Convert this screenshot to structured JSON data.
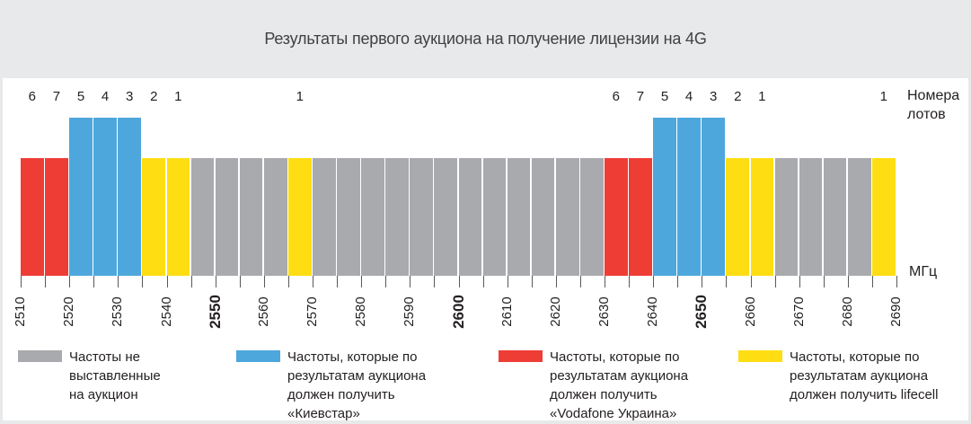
{
  "chart_data": {
    "type": "bar",
    "title": "Результаты первого аукциона на получение лицензии на 4G",
    "lot_axis_label": "Номера лотов",
    "x_axis": {
      "unit_label": "МГц",
      "min": 2510,
      "max": 2690,
      "labeled_tick_step": 10,
      "minor_tick_step": 5,
      "bold_tick_labels": [
        2550,
        2600,
        2650
      ]
    },
    "owner_colors": {
      "unsold": "#a8aaad",
      "kyivstar": "#4da7dd",
      "vodafone": "#ee3d35",
      "lifecell": "#fedd13"
    },
    "tall_owner": "kyivstar",
    "bars": [
      {
        "from": 2510,
        "to": 2515,
        "owner": "vodafone",
        "lot": "6"
      },
      {
        "from": 2515,
        "to": 2520,
        "owner": "vodafone",
        "lot": "7"
      },
      {
        "from": 2520,
        "to": 2525,
        "owner": "kyivstar",
        "lot": "5"
      },
      {
        "from": 2525,
        "to": 2530,
        "owner": "kyivstar",
        "lot": "4"
      },
      {
        "from": 2530,
        "to": 2535,
        "owner": "kyivstar",
        "lot": "3"
      },
      {
        "from": 2535,
        "to": 2540,
        "owner": "lifecell",
        "lot": "2"
      },
      {
        "from": 2540,
        "to": 2545,
        "owner": "lifecell",
        "lot": "1"
      },
      {
        "from": 2545,
        "to": 2550,
        "owner": "unsold",
        "lot": ""
      },
      {
        "from": 2550,
        "to": 2555,
        "owner": "unsold",
        "lot": ""
      },
      {
        "from": 2555,
        "to": 2560,
        "owner": "unsold",
        "lot": ""
      },
      {
        "from": 2560,
        "to": 2565,
        "owner": "unsold",
        "lot": ""
      },
      {
        "from": 2565,
        "to": 2570,
        "owner": "lifecell",
        "lot": "1"
      },
      {
        "from": 2570,
        "to": 2575,
        "owner": "unsold",
        "lot": ""
      },
      {
        "from": 2575,
        "to": 2580,
        "owner": "unsold",
        "lot": ""
      },
      {
        "from": 2580,
        "to": 2585,
        "owner": "unsold",
        "lot": ""
      },
      {
        "from": 2585,
        "to": 2590,
        "owner": "unsold",
        "lot": ""
      },
      {
        "from": 2590,
        "to": 2595,
        "owner": "unsold",
        "lot": ""
      },
      {
        "from": 2595,
        "to": 2600,
        "owner": "unsold",
        "lot": ""
      },
      {
        "from": 2600,
        "to": 2605,
        "owner": "unsold",
        "lot": ""
      },
      {
        "from": 2605,
        "to": 2610,
        "owner": "unsold",
        "lot": ""
      },
      {
        "from": 2610,
        "to": 2615,
        "owner": "unsold",
        "lot": ""
      },
      {
        "from": 2615,
        "to": 2620,
        "owner": "unsold",
        "lot": ""
      },
      {
        "from": 2620,
        "to": 2625,
        "owner": "unsold",
        "lot": ""
      },
      {
        "from": 2625,
        "to": 2630,
        "owner": "unsold",
        "lot": ""
      },
      {
        "from": 2630,
        "to": 2635,
        "owner": "vodafone",
        "lot": "6"
      },
      {
        "from": 2635,
        "to": 2640,
        "owner": "vodafone",
        "lot": "7"
      },
      {
        "from": 2640,
        "to": 2645,
        "owner": "kyivstar",
        "lot": "5"
      },
      {
        "from": 2645,
        "to": 2650,
        "owner": "kyivstar",
        "lot": "4"
      },
      {
        "from": 2650,
        "to": 2655,
        "owner": "kyivstar",
        "lot": "3"
      },
      {
        "from": 2655,
        "to": 2660,
        "owner": "lifecell",
        "lot": "2"
      },
      {
        "from": 2660,
        "to": 2665,
        "owner": "lifecell",
        "lot": "1"
      },
      {
        "from": 2665,
        "to": 2670,
        "owner": "unsold",
        "lot": ""
      },
      {
        "from": 2670,
        "to": 2675,
        "owner": "unsold",
        "lot": ""
      },
      {
        "from": 2675,
        "to": 2680,
        "owner": "unsold",
        "lot": ""
      },
      {
        "from": 2680,
        "to": 2685,
        "owner": "unsold",
        "lot": ""
      },
      {
        "from": 2685,
        "to": 2690,
        "owner": "lifecell",
        "lot": "1"
      }
    ]
  },
  "legend": {
    "items": [
      {
        "key": "unsold",
        "color": "#a8aaad",
        "label": "Частоты не выставленные на аукцион"
      },
      {
        "key": "kyivstar",
        "color": "#4da7dd",
        "label": "Частоты, которые по результатам аукциона должен получить «Киевстар»"
      },
      {
        "key": "vodafone",
        "color": "#ee3d35",
        "label": "Частоты, которые по результатам аукциона должен получить «Vodafone Украина»"
      },
      {
        "key": "lifecell",
        "color": "#fedd13",
        "label": "Частоты, которые по результатам аукциона должен получить lifecell"
      }
    ]
  }
}
